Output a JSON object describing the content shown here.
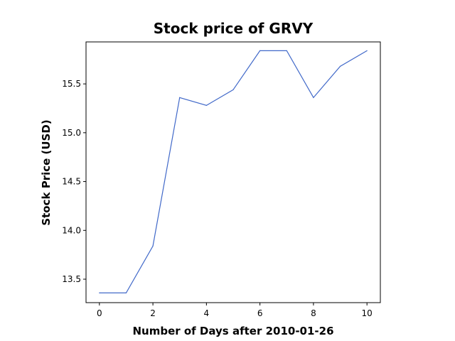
{
  "chart_data": {
    "type": "line",
    "title": "Stock price of GRVY",
    "xlabel": "Number of Days after 2010-01-26",
    "ylabel": "Stock Price (USD)",
    "x": [
      0,
      1,
      2,
      3,
      4,
      5,
      6,
      7,
      8,
      9,
      10
    ],
    "series": [
      {
        "values": [
          13.36,
          13.36,
          13.84,
          15.36,
          15.28,
          15.44,
          15.84,
          15.84,
          15.36,
          15.68,
          15.84
        ],
        "color": "#4169c9"
      }
    ],
    "xlim": [
      -0.5,
      10.5
    ],
    "ylim": [
      13.26,
      15.93
    ],
    "xticks": [
      0,
      2,
      4,
      6,
      8,
      10
    ],
    "yticks": [
      13.5,
      14.0,
      14.5,
      15.0,
      15.5
    ],
    "xtick_labels": [
      "0",
      "2",
      "4",
      "6",
      "8",
      "10"
    ],
    "ytick_labels": [
      "13.5",
      "14.0",
      "14.5",
      "15.0",
      "15.5"
    ],
    "grid": false
  }
}
